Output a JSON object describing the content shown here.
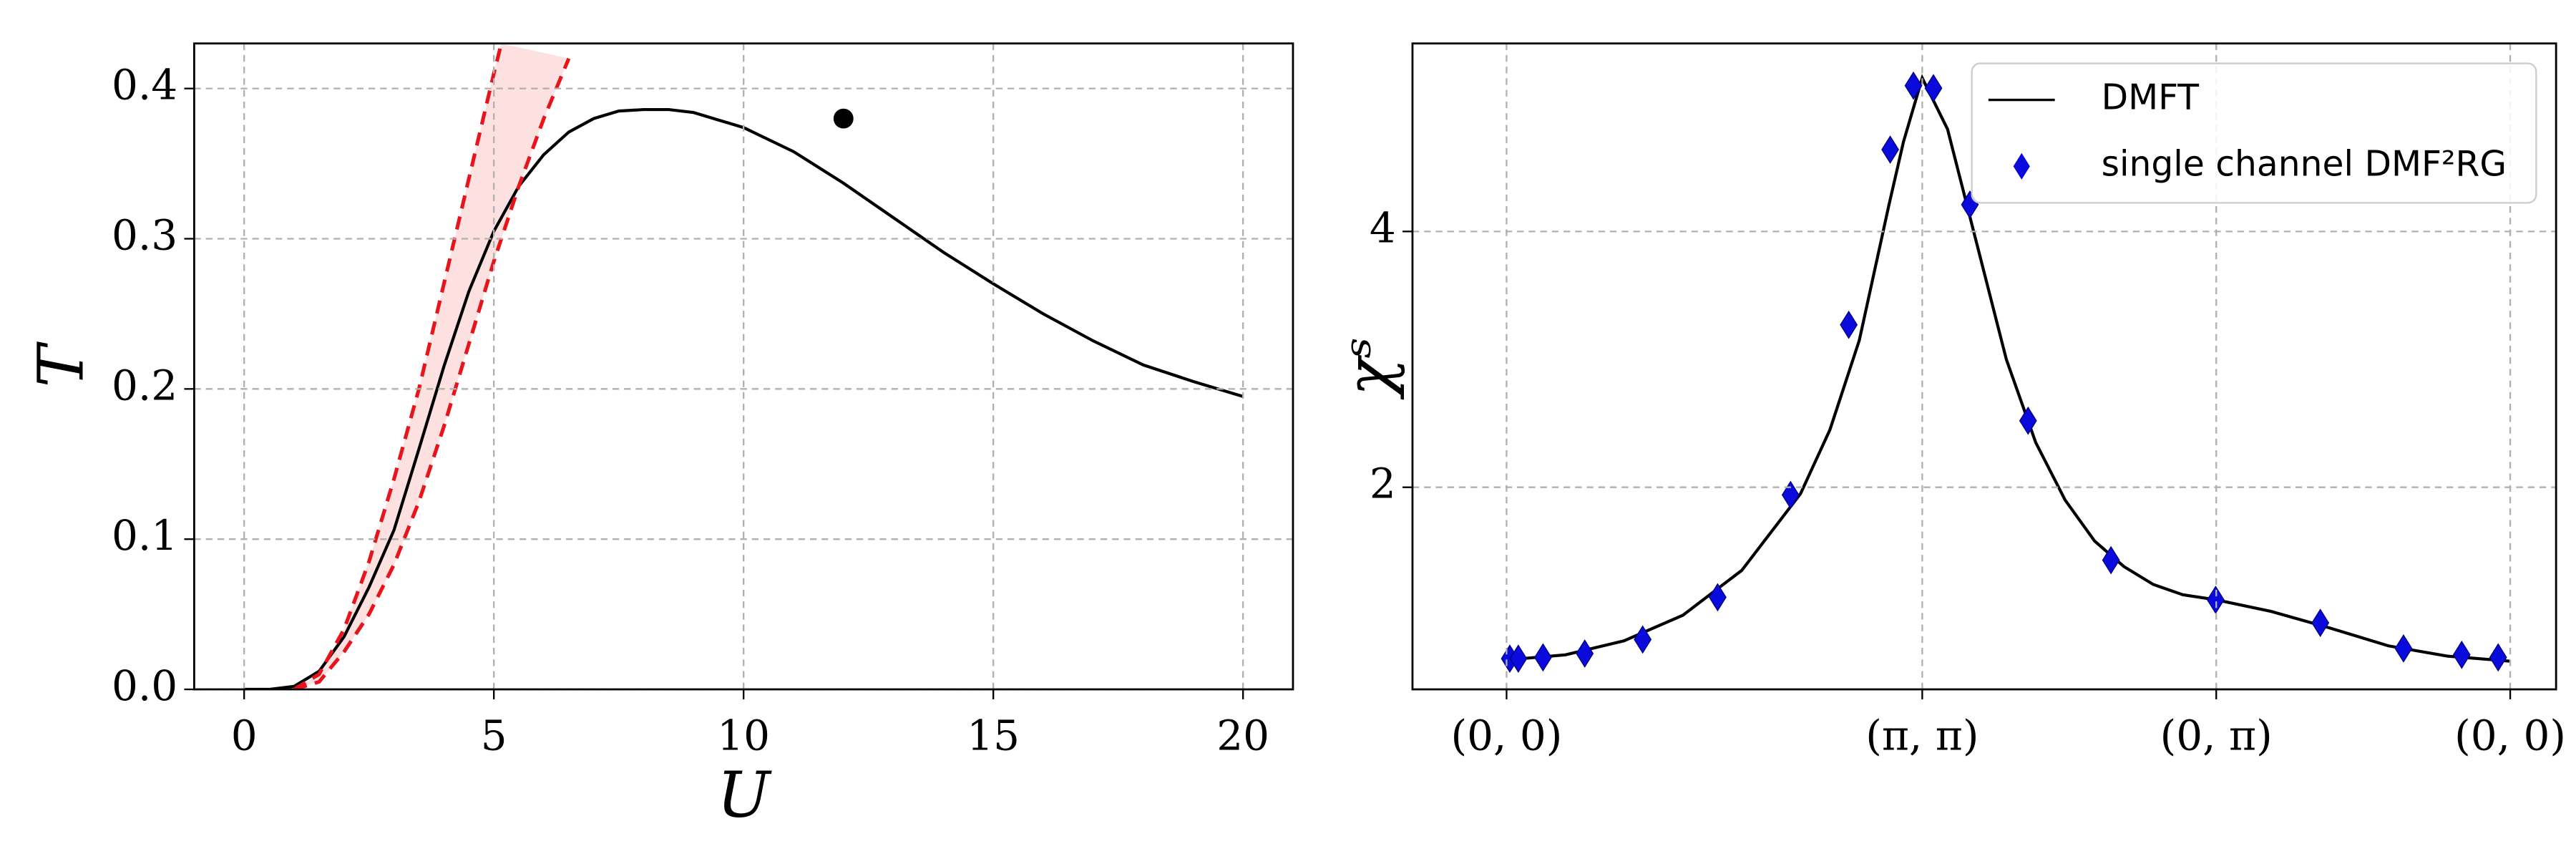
{
  "chart_data": [
    {
      "type": "line",
      "xlabel": "U",
      "ylabel": "T",
      "xlim": [
        -1,
        21
      ],
      "ylim": [
        0,
        0.43
      ],
      "xticks": [
        0,
        5,
        10,
        15,
        20
      ],
      "yticks": [
        {
          "value": 0,
          "label": "0.0"
        },
        0.1,
        0.2,
        0.3,
        0.4
      ],
      "grid": true,
      "band_color": "#fde0e0",
      "series": [
        {
          "color": "#000000",
          "x": [
            0,
            0.5,
            1,
            1.5,
            2,
            2.5,
            3,
            3.5,
            4,
            4.5,
            5,
            5.5,
            6,
            6.5,
            7,
            7.5,
            8,
            8.5,
            9,
            10,
            11,
            12,
            13,
            14,
            15,
            16,
            17,
            18,
            19,
            20
          ],
          "values": [
            0,
            0,
            0.002,
            0.012,
            0.035,
            0.068,
            0.106,
            0.16,
            0.215,
            0.265,
            0.305,
            0.335,
            0.356,
            0.371,
            0.38,
            0.385,
            0.386,
            0.386,
            0.384,
            0.374,
            0.358,
            0.337,
            0.314,
            0.291,
            0.27,
            0.25,
            0.232,
            0.216,
            0.205,
            0.195
          ]
        },
        {
          "color": "#e8141c",
          "dashed": true,
          "x": [
            1,
            1.5,
            2,
            2.5,
            3,
            3.5,
            4,
            4.5,
            5,
            5.15
          ],
          "values": [
            0,
            0.01,
            0.04,
            0.085,
            0.14,
            0.2,
            0.27,
            0.34,
            0.41,
            0.43
          ]
        },
        {
          "color": "#e8141c",
          "dashed": true,
          "x": [
            1,
            1.5,
            2,
            2.5,
            3,
            3.5,
            4,
            4.5,
            5,
            5.5,
            6,
            6.5
          ],
          "values": [
            0,
            0.005,
            0.025,
            0.05,
            0.083,
            0.125,
            0.175,
            0.23,
            0.285,
            0.335,
            0.38,
            0.42
          ]
        },
        {
          "color": "#000000",
          "marker": "circle",
          "x": [
            12
          ],
          "values": [
            0.38
          ]
        }
      ]
    },
    {
      "type": "line",
      "ylabel": "χˢ",
      "xlim": [
        -0.32,
        3.57
      ],
      "ylim": [
        0.42,
        5.47
      ],
      "xticks": [
        {
          "value": 0,
          "label": "(0, 0)"
        },
        {
          "value": 1.414,
          "label": "(π, π)"
        },
        {
          "value": 2.414,
          "label": "(0, π)"
        },
        {
          "value": 3.414,
          "label": "(0, 0)"
        }
      ],
      "yticks": [
        2,
        4
      ],
      "grid": true,
      "legend": "upper right",
      "series": [
        {
          "name": "DMFT",
          "color": "#000000",
          "x": [
            0,
            0.2,
            0.4,
            0.6,
            0.8,
            1.0,
            1.1,
            1.2,
            1.3,
            1.35,
            1.414,
            1.5,
            1.6,
            1.7,
            1.8,
            1.9,
            2.0,
            2.1,
            2.2,
            2.3,
            2.414,
            2.6,
            2.8,
            3.0,
            3.2,
            3.414
          ],
          "values": [
            0.65,
            0.69,
            0.8,
            1.0,
            1.35,
            1.95,
            2.45,
            3.15,
            4.2,
            4.7,
            5.2,
            4.8,
            3.9,
            3.0,
            2.35,
            1.9,
            1.58,
            1.38,
            1.24,
            1.16,
            1.12,
            1.03,
            0.9,
            0.76,
            0.68,
            0.64
          ]
        },
        {
          "name": "single channel DMF²RG",
          "color": "#0a0adc",
          "marker": "diamond",
          "x": [
            0.011,
            0.04,
            0.124,
            0.266,
            0.463,
            0.718,
            0.966,
            1.164,
            1.305,
            1.384,
            1.452,
            1.576,
            1.774,
            2.056,
            2.412,
            2.768,
            3.051,
            3.249,
            3.373
          ],
          "values": [
            0.66,
            0.66,
            0.67,
            0.7,
            0.81,
            1.14,
            1.94,
            3.27,
            4.64,
            5.14,
            5.12,
            4.21,
            2.52,
            1.43,
            1.12,
            0.94,
            0.74,
            0.69,
            0.67
          ]
        }
      ]
    }
  ]
}
